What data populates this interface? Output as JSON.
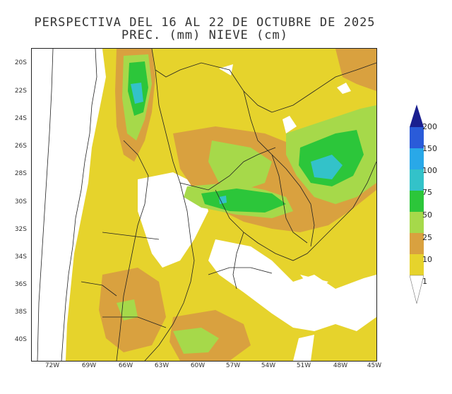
{
  "title": {
    "line1": "PERSPECTIVA DEL 16 AL 22 DE OCTUBRE DE 2025",
    "line2": "PREC. (mm) NIEVE (cm)"
  },
  "axes": {
    "latitudes": [
      "20S",
      "22S",
      "24S",
      "26S",
      "28S",
      "30S",
      "32S",
      "34S",
      "36S",
      "38S",
      "40S"
    ],
    "longitudes": [
      "72W",
      "69W",
      "66W",
      "63W",
      "60W",
      "57W",
      "54W",
      "51W",
      "48W",
      "45W"
    ]
  },
  "legend": {
    "levels": [
      "1",
      "10",
      "25",
      "50",
      "75",
      "100",
      "150",
      "200"
    ],
    "colors": {
      "level_1": "#e6d32c",
      "level_10": "#d9a13f",
      "level_25": "#a6d94a",
      "level_50": "#2cc63a",
      "level_75": "#33c2c9",
      "level_100": "#29a8e8",
      "level_150": "#2a5bd9",
      "level_200": "#1a1f8f"
    }
  }
}
